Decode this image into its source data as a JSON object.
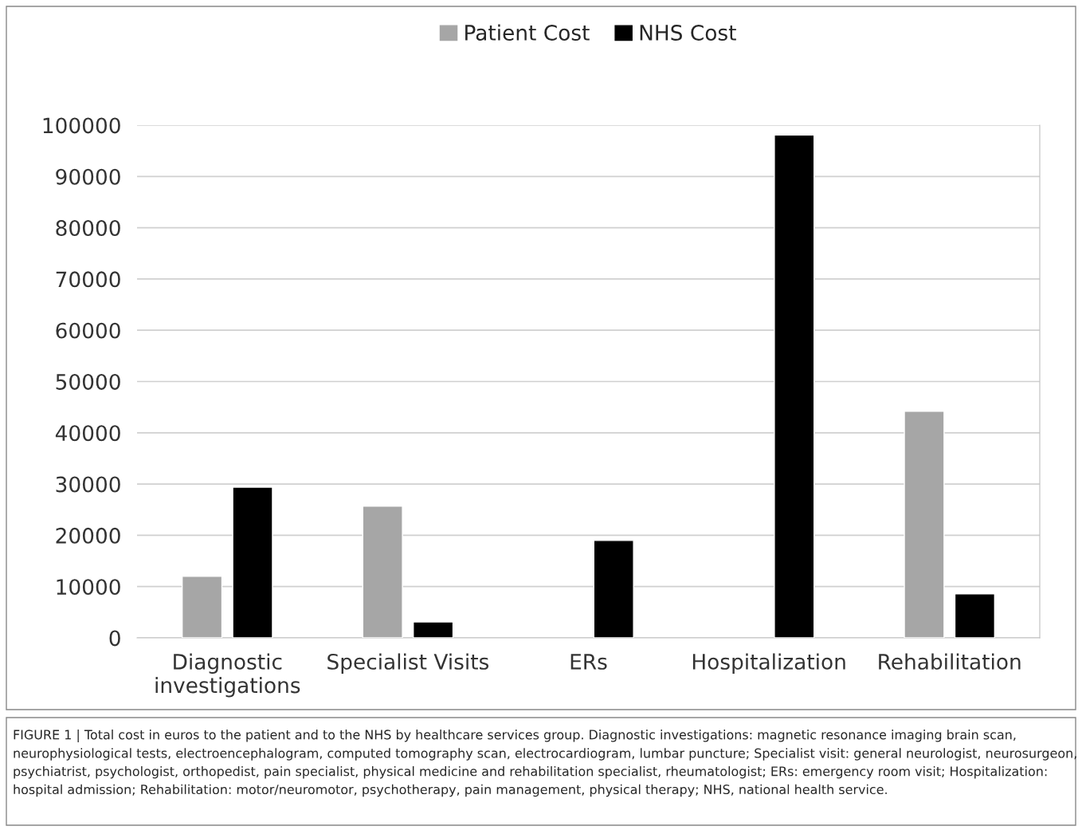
{
  "chart_data": {
    "type": "bar",
    "categories": [
      "Diagnostic\ninvestigations",
      "Specialist Visits",
      "ERs",
      "Hospitalization",
      "Rehabilitation"
    ],
    "series": [
      {
        "name": "Patient Cost",
        "color": "#a6a6a6",
        "values": [
          12000,
          25700,
          null,
          null,
          44200
        ]
      },
      {
        "name": "NHS Cost",
        "color": "#000000",
        "values": [
          29400,
          3100,
          19000,
          98100,
          8600
        ]
      }
    ],
    "ylim": [
      0,
      100000
    ],
    "yticks": [
      0,
      10000,
      20000,
      30000,
      40000,
      50000,
      60000,
      70000,
      80000,
      90000,
      100000
    ],
    "grid": "y",
    "legend": "top",
    "annotations": [
      "FIGURE 1 | Total cost in euros to the patient and to the NHS by healthcare services group. Diagnostic investigations: magnetic resonance imaging brain scan, neurophysiological tests, electroencephalogram, computed tomography scan, electrocardiogram, lumbar puncture; Specialist visit: general neurologist, neurosurgeon, psychiatrist, psychologist, orthopedist, pain specialist, physical medicine and rehabilitation specialist, rheumatologist; ERs: emergency room visit; Hospitalization: hospital admission; Rehabilitation: motor/neuromotor, psychotherapy, pain management, physical therapy; NHS, national health service."
    ]
  }
}
